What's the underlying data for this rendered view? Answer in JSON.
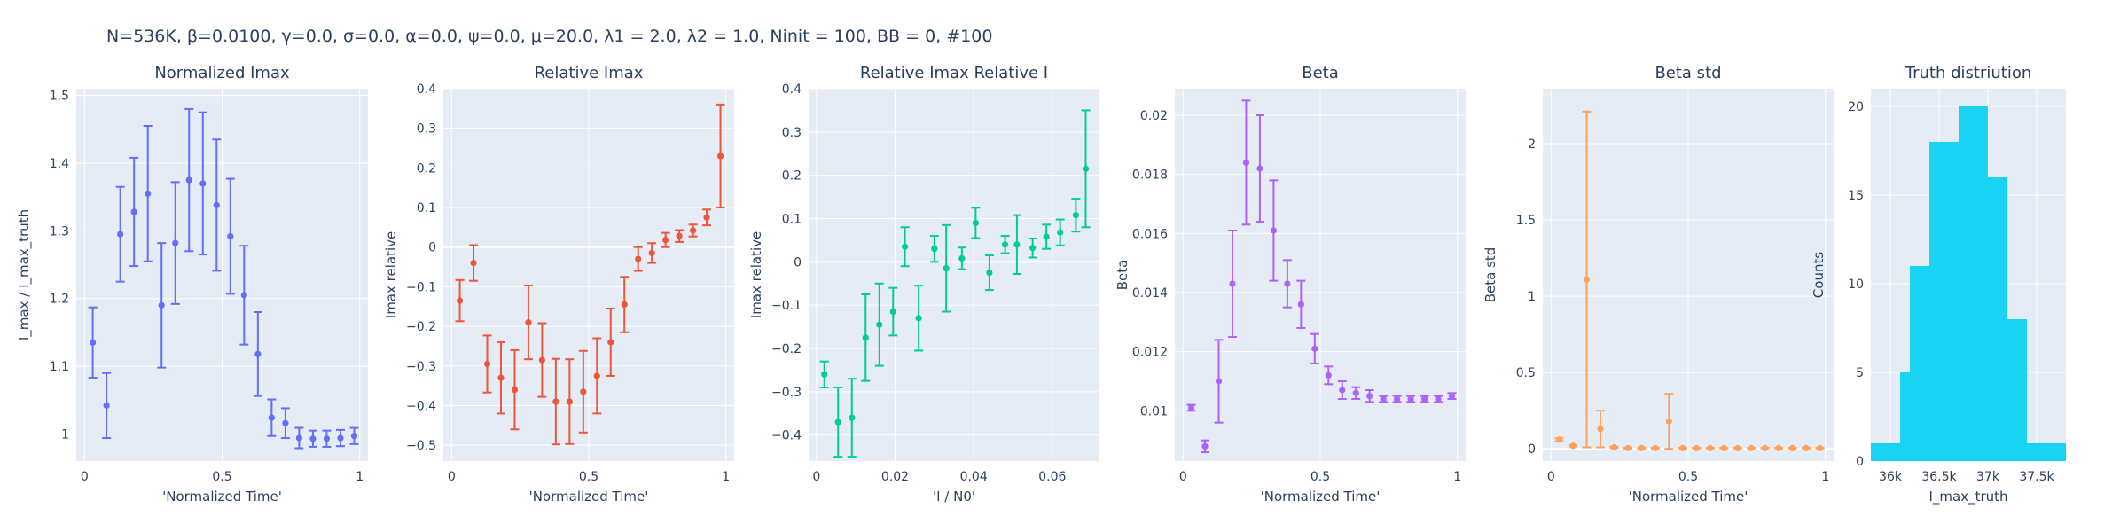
{
  "suptitle": "N=536K, β=0.0100, γ=0.0, σ=0.0,  α=0.0, ψ=0.0, μ=20.0, λ1 = 2.0, λ2 = 1.0, Ninit = 100, BB = 0, #100",
  "colors": {
    "plot_bg": "#E5ECF6",
    "grid": "#ffffff",
    "text": "#2a3f5f",
    "panel1": "#636EFA",
    "panel2": "#EF553B",
    "panel3": "#00CC96",
    "panel4": "#AB63FA",
    "panel5": "#FFA15A",
    "panel6": "#19D3F3"
  },
  "chart_data": [
    {
      "type": "scatter",
      "title": "Normalized Imax",
      "xlabel": "'Normalized Time'",
      "ylabel": "I_max / I_max_truth",
      "xlim": [
        -0.03,
        1.03
      ],
      "ylim": [
        0.96,
        1.51
      ],
      "xticks": [
        0,
        0.5,
        1
      ],
      "xtick_labels": [
        "0",
        "0.5",
        "1"
      ],
      "yticks": [
        1,
        1.1,
        1.2,
        1.3,
        1.4,
        1.5
      ],
      "ytick_labels": [
        "1",
        "1.1",
        "1.2",
        "1.3",
        "1.4",
        "1.5"
      ],
      "series": [
        {
          "x": [
            0.03,
            0.08,
            0.13,
            0.18,
            0.23,
            0.28,
            0.33,
            0.38,
            0.43,
            0.48,
            0.53,
            0.58,
            0.63,
            0.68,
            0.73,
            0.78,
            0.83,
            0.88,
            0.93,
            0.98
          ],
          "y": [
            1.135,
            1.042,
            1.295,
            1.328,
            1.355,
            1.19,
            1.282,
            1.375,
            1.37,
            1.338,
            1.292,
            1.205,
            1.118,
            1.024,
            1.016,
            0.994,
            0.993,
            0.993,
            0.994,
            0.997
          ],
          "err": [
            0.052,
            0.048,
            0.07,
            0.08,
            0.1,
            0.092,
            0.09,
            0.105,
            0.105,
            0.097,
            0.085,
            0.073,
            0.062,
            0.027,
            0.022,
            0.015,
            0.012,
            0.012,
            0.012,
            0.012
          ]
        }
      ]
    },
    {
      "type": "scatter",
      "title": "Relative Imax",
      "xlabel": "'Normalized Time'",
      "ylabel": "Imax relative",
      "xlim": [
        -0.03,
        1.03
      ],
      "ylim": [
        -0.54,
        0.4
      ],
      "xticks": [
        0,
        0.5,
        1
      ],
      "xtick_labels": [
        "0",
        "0.5",
        "1"
      ],
      "yticks": [
        -0.5,
        -0.4,
        -0.3,
        -0.2,
        -0.1,
        0,
        0.1,
        0.2,
        0.3,
        0.4
      ],
      "ytick_labels": [
        "−0.5",
        "−0.4",
        "−0.3",
        "−0.2",
        "−0.1",
        "0",
        "0.1",
        "0.2",
        "0.3",
        "0.4"
      ],
      "series": [
        {
          "x": [
            0.03,
            0.08,
            0.13,
            0.18,
            0.23,
            0.28,
            0.33,
            0.38,
            0.43,
            0.48,
            0.53,
            0.58,
            0.63,
            0.68,
            0.73,
            0.78,
            0.83,
            0.88,
            0.93,
            0.98
          ],
          "y": [
            -0.135,
            -0.04,
            -0.295,
            -0.33,
            -0.36,
            -0.19,
            -0.285,
            -0.39,
            -0.39,
            -0.365,
            -0.325,
            -0.24,
            -0.145,
            -0.03,
            -0.015,
            0.018,
            0.028,
            0.042,
            0.075,
            0.23
          ],
          "err": [
            0.052,
            0.045,
            0.072,
            0.09,
            0.1,
            0.093,
            0.093,
            0.108,
            0.107,
            0.103,
            0.095,
            0.085,
            0.07,
            0.03,
            0.025,
            0.018,
            0.015,
            0.015,
            0.02,
            0.13
          ]
        }
      ]
    },
    {
      "type": "scatter",
      "title": "Relative Imax Relative I",
      "xlabel": "'I / N0'",
      "ylabel": "Imax relative",
      "xlim": [
        -0.002,
        0.072
      ],
      "ylim": [
        -0.46,
        0.4
      ],
      "xticks": [
        0,
        0.02,
        0.04,
        0.06
      ],
      "xtick_labels": [
        "0",
        "0.02",
        "0.04",
        "0.06"
      ],
      "yticks": [
        -0.4,
        -0.3,
        -0.2,
        -0.1,
        0,
        0.1,
        0.2,
        0.3,
        0.4
      ],
      "ytick_labels": [
        "−0.4",
        "−0.3",
        "−0.2",
        "−0.1",
        "0",
        "0.1",
        "0.2",
        "0.3",
        "0.4"
      ],
      "series": [
        {
          "x": [
            0.002,
            0.0055,
            0.009,
            0.0125,
            0.016,
            0.0195,
            0.0225,
            0.026,
            0.03,
            0.033,
            0.037,
            0.0405,
            0.044,
            0.048,
            0.051,
            0.055,
            0.0585,
            0.062,
            0.066,
            0.0685
          ],
          "y": [
            -0.26,
            -0.37,
            -0.36,
            -0.175,
            -0.145,
            -0.115,
            0.035,
            -0.13,
            0.03,
            -0.015,
            0.008,
            0.09,
            -0.025,
            0.04,
            0.04,
            0.032,
            0.058,
            0.068,
            0.108,
            0.215
          ],
          "err": [
            0.03,
            0.08,
            0.09,
            0.1,
            0.095,
            0.055,
            0.045,
            0.075,
            0.03,
            0.1,
            0.025,
            0.035,
            0.04,
            0.02,
            0.068,
            0.022,
            0.028,
            0.03,
            0.038,
            0.135
          ]
        }
      ]
    },
    {
      "type": "scatter",
      "title": "Beta",
      "xlabel": "'Normalized Time'",
      "ylabel": "Beta",
      "xlim": [
        -0.03,
        1.03
      ],
      "ylim": [
        0.0083,
        0.0209
      ],
      "xticks": [
        0,
        0.5,
        1
      ],
      "xtick_labels": [
        "0",
        "0.5",
        "1"
      ],
      "yticks": [
        0.01,
        0.012,
        0.014,
        0.016,
        0.018,
        0.02
      ],
      "ytick_labels": [
        "0.01",
        "0.012",
        "0.014",
        "0.016",
        "0.018",
        "0.02"
      ],
      "series": [
        {
          "x": [
            0.03,
            0.08,
            0.13,
            0.18,
            0.23,
            0.28,
            0.33,
            0.38,
            0.43,
            0.48,
            0.53,
            0.58,
            0.63,
            0.68,
            0.73,
            0.78,
            0.83,
            0.88,
            0.93,
            0.98
          ],
          "y": [
            0.0101,
            0.0088,
            0.011,
            0.0143,
            0.0184,
            0.0182,
            0.0161,
            0.0143,
            0.0136,
            0.0121,
            0.0112,
            0.0107,
            0.0106,
            0.0105,
            0.0104,
            0.0104,
            0.0104,
            0.0104,
            0.0104,
            0.0105
          ],
          "err": [
            0.0001,
            0.0002,
            0.0014,
            0.0018,
            0.0021,
            0.0018,
            0.0017,
            0.0008,
            0.0008,
            0.0005,
            0.0003,
            0.0003,
            0.0002,
            0.0002,
            0.0001,
            0.0001,
            0.0001,
            0.0001,
            0.0001,
            0.0001
          ]
        }
      ]
    },
    {
      "type": "scatter",
      "title": "Beta std",
      "xlabel": "'Normalized Time'",
      "ylabel": "Beta std",
      "xlim": [
        -0.03,
        1.03
      ],
      "ylim": [
        -0.08,
        2.36
      ],
      "xticks": [
        0,
        0.5,
        1
      ],
      "xtick_labels": [
        "0",
        "0.5",
        "1"
      ],
      "yticks": [
        0,
        0.5,
        1,
        1.5,
        2
      ],
      "ytick_labels": [
        "0",
        "0.5",
        "1",
        "1.5",
        "2"
      ],
      "series": [
        {
          "x": [
            0.03,
            0.08,
            0.13,
            0.18,
            0.23,
            0.28,
            0.33,
            0.38,
            0.43,
            0.48,
            0.53,
            0.58,
            0.63,
            0.68,
            0.73,
            0.78,
            0.83,
            0.88,
            0.93,
            0.98
          ],
          "y": [
            0.06,
            0.02,
            1.11,
            0.13,
            0.01,
            0.005,
            0.005,
            0.005,
            0.18,
            0.005,
            0.005,
            0.005,
            0.005,
            0.005,
            0.005,
            0.005,
            0.005,
            0.005,
            0.005,
            0.005
          ],
          "err": [
            0.01,
            0.005,
            1.1,
            0.12,
            0.005,
            0.003,
            0.003,
            0.003,
            0.18,
            0.002,
            0.002,
            0.002,
            0.002,
            0.002,
            0.002,
            0.002,
            0.002,
            0.002,
            0.002,
            0.002
          ]
        }
      ]
    },
    {
      "type": "bar",
      "title": "Truth distriution",
      "xlabel": "I_max_truth",
      "ylabel": "Counts",
      "xlim": [
        35800,
        37800
      ],
      "ylim": [
        0,
        21
      ],
      "xticks": [
        36000,
        36500,
        37000,
        37500
      ],
      "xtick_labels": [
        "36k",
        "36.5k",
        "37k",
        "37.5k"
      ],
      "yticks": [
        0,
        5,
        10,
        15,
        20
      ],
      "ytick_labels": [
        "0",
        "5",
        "10",
        "15",
        "20"
      ],
      "bin_edges": [
        35800,
        36000,
        36100,
        36200,
        36400,
        36600,
        36700,
        36900,
        37000,
        37200,
        37400,
        37800
      ],
      "values": [
        1,
        1,
        5,
        11,
        18,
        18,
        20,
        20,
        16,
        8,
        1
      ]
    }
  ]
}
